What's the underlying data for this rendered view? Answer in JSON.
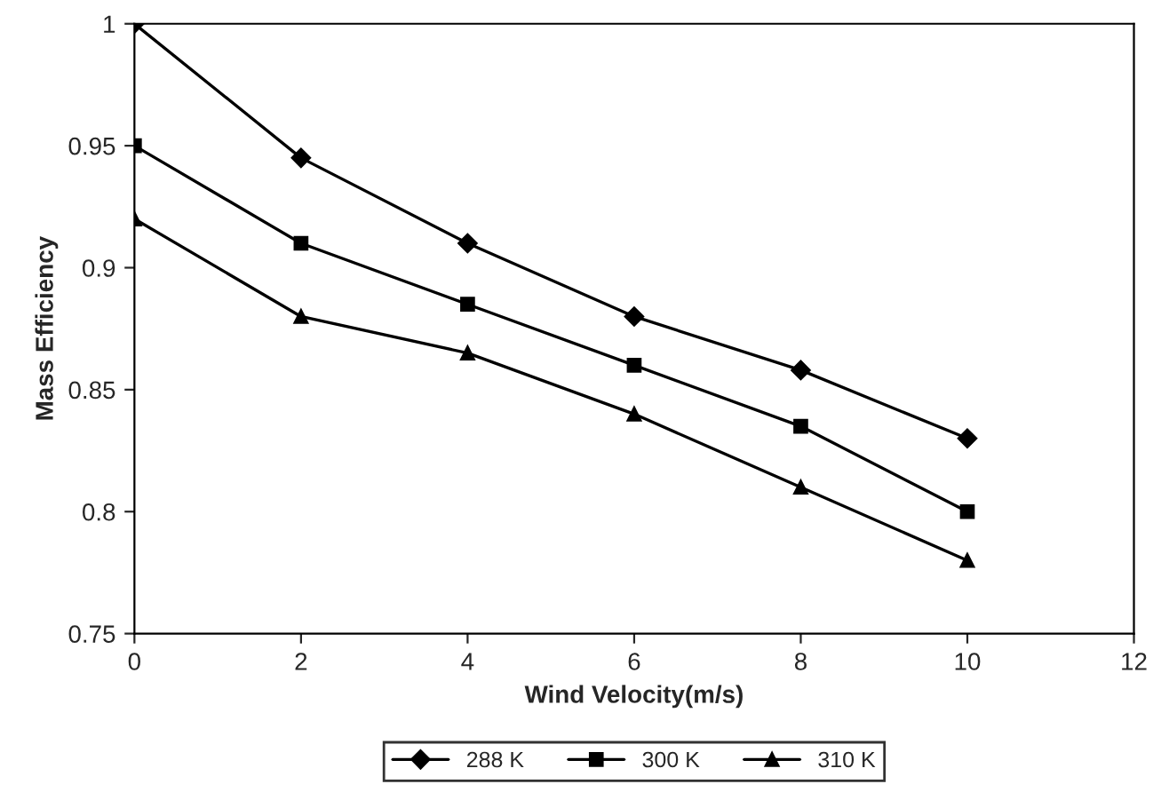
{
  "chart_data": {
    "type": "line",
    "xlabel": "Wind Velocity(m/s)",
    "ylabel": "Mass Efficiency",
    "x": [
      0,
      2,
      4,
      6,
      8,
      10
    ],
    "series": [
      {
        "name": "288 K",
        "color": "#000000",
        "marker": "diamond",
        "values": [
          1,
          0.945,
          0.91,
          0.88,
          0.858,
          0.83
        ]
      },
      {
        "name": "300 K",
        "color": "#000000",
        "marker": "square",
        "values": [
          0.95,
          0.91,
          0.885,
          0.86,
          0.835,
          0.8
        ]
      },
      {
        "name": "310 K",
        "color": "#000000",
        "marker": "triangle",
        "values": [
          0.92,
          0.88,
          0.865,
          0.84,
          0.81,
          0.78
        ]
      }
    ],
    "xlim": [
      0,
      12
    ],
    "xticks": [
      0,
      2,
      4,
      6,
      8,
      10,
      12
    ],
    "ylim": [
      0.75,
      1
    ],
    "yticks": [
      0.75,
      0.8,
      0.85,
      0.9,
      0.95,
      1
    ],
    "grid": false,
    "legend": "bottom"
  }
}
